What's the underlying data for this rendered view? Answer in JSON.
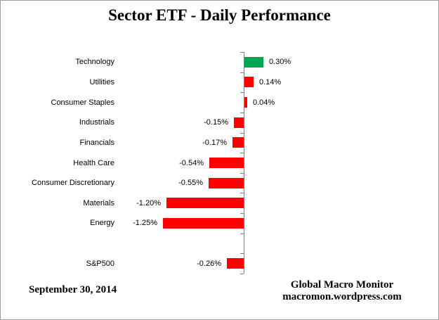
{
  "title": "Sector ETF - Daily Performance",
  "chart_data": {
    "type": "bar",
    "orientation": "horizontal",
    "title": "Sector ETF - Daily Performance",
    "xlabel": "",
    "ylabel": "",
    "unit": "percent",
    "grid": false,
    "legend": false,
    "xlim": [
      -1.5,
      0.5
    ],
    "axis_color": "#808080",
    "positive_highlight_color": "#00A550",
    "negative_color": "#FF0000",
    "items": [
      {
        "category": "Technology",
        "value": 0.3,
        "label": "0.30%",
        "color": "#00A550"
      },
      {
        "category": "Utilities",
        "value": 0.14,
        "label": "0.14%",
        "color": "#FF0000"
      },
      {
        "category": "Consumer Staples",
        "value": 0.04,
        "label": "0.04%",
        "color": "#FF0000"
      },
      {
        "category": "Industrials",
        "value": -0.15,
        "label": "-0.15%",
        "color": "#FF0000"
      },
      {
        "category": "Financials",
        "value": -0.17,
        "label": "-0.17%",
        "color": "#FF0000"
      },
      {
        "category": "Health Care",
        "value": -0.54,
        "label": "-0.54%",
        "color": "#FF0000"
      },
      {
        "category": "Consumer Discretionary",
        "value": -0.55,
        "label": "-0.55%",
        "color": "#FF0000"
      },
      {
        "category": "Materials",
        "value": -1.2,
        "label": "-1.20%",
        "color": "#FF0000"
      },
      {
        "category": "Energy",
        "value": -1.25,
        "label": "-1.25%",
        "color": "#FF0000"
      },
      {
        "category": "",
        "value": null,
        "label": "",
        "color": null
      },
      {
        "category": "S&P500",
        "value": -0.26,
        "label": "-0.26%",
        "color": "#FF0000"
      }
    ]
  },
  "footer": {
    "date": "September 30, 2014",
    "source_line1": "Global Macro Monitor",
    "source_line2": "macromon.wordpress.com"
  }
}
